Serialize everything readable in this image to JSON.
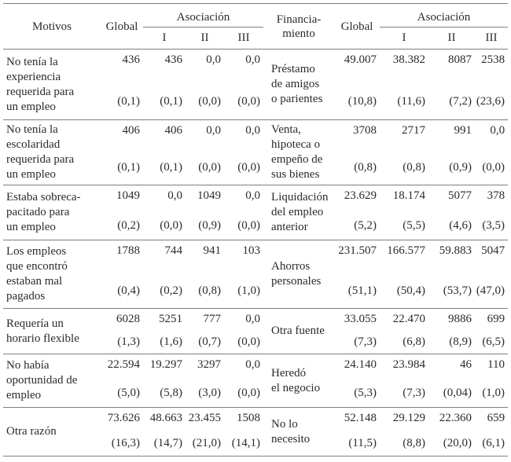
{
  "page": {
    "background": "#ffffff",
    "text_color": "#2b2b2b",
    "rule_color": "#7d7d7d"
  },
  "left_table": {
    "header": {
      "col1": "Motivos",
      "global": "Global",
      "group": "Asociación",
      "sub": [
        "I",
        "II",
        "III"
      ]
    },
    "rows": [
      {
        "label": "No tenía la\nexperiencia\nrequerida para\nun empleo",
        "counts": [
          "436",
          "436",
          "0,0",
          "0,0"
        ],
        "pcts": [
          "(0,1)",
          "(0,1)",
          "(0,0)",
          "(0,0)"
        ]
      },
      {
        "label": "No tenía la\nescolaridad\nrequerida para\nun empleo",
        "counts": [
          "406",
          "406",
          "0,0",
          "0,0"
        ],
        "pcts": [
          "(0,1)",
          "(0,1)",
          "(0,0)",
          "(0,0)"
        ]
      },
      {
        "label": "Estaba sobreca-\npacitado para\nun empleo",
        "counts": [
          "1049",
          "0,0",
          "1049",
          "0,0"
        ],
        "pcts": [
          "(0,2)",
          "(0,0)",
          "(0,9)",
          "(0,0)"
        ]
      },
      {
        "label": "Los empleos\nque encontró\nestaban mal\npagados",
        "counts": [
          "1788",
          "744",
          "941",
          "103"
        ],
        "pcts": [
          "(0,4)",
          "(0,2)",
          "(0,8)",
          "(1,0)"
        ]
      },
      {
        "label": "Requería un\nhorario flexible",
        "counts": [
          "6028",
          "5251",
          "777",
          "0,0"
        ],
        "pcts": [
          "(1,3)",
          "(1,6)",
          "(0,7)",
          "(0,0)"
        ]
      },
      {
        "label": "No había\noportunidad de\nempleo",
        "counts": [
          "22.594",
          "19.297",
          "3297",
          "0,0"
        ],
        "pcts": [
          "(5,0)",
          "(5,8)",
          "(3,0)",
          "(0,0)"
        ]
      },
      {
        "label": "Otra razón",
        "counts": [
          "73.626",
          "48.663",
          "23.455",
          "1508"
        ],
        "pcts": [
          "(16,3)",
          "(14,7)",
          "(21,0)",
          "(14,1)"
        ]
      }
    ]
  },
  "right_table": {
    "header": {
      "col1": "Financia-\nmiento",
      "global": "Global",
      "group": "Asociación",
      "sub": [
        "I",
        "II",
        "III"
      ]
    },
    "rows": [
      {
        "label": "Préstamo\nde amigos\no parientes",
        "counts": [
          "49.007",
          "38.382",
          "8087",
          "2538"
        ],
        "pcts": [
          "(10,8)",
          "(11,6)",
          "(7,2)",
          "(23,6)"
        ]
      },
      {
        "label": "Venta,\nhipoteca o\nempeño de\nsus bienes",
        "counts": [
          "3708",
          "2717",
          "991",
          "0,0"
        ],
        "pcts": [
          "(0,8)",
          "(0,8)",
          "(0,9)",
          "(0,0)"
        ]
      },
      {
        "label": "Liquidación\ndel empleo\nanterior",
        "counts": [
          "23.629",
          "18.174",
          "5077",
          "378"
        ],
        "pcts": [
          "(5,2)",
          "(5,5)",
          "(4,6)",
          "(3,5)"
        ]
      },
      {
        "label": "Ahorros\npersonales",
        "counts": [
          "231.507",
          "166.577",
          "59.883",
          "5047"
        ],
        "pcts": [
          "(51,1)",
          "(50,4)",
          "(53,7)",
          "(47,0)"
        ]
      },
      {
        "label": "Otra fuente",
        "counts": [
          "33.055",
          "22.470",
          "9886",
          "699"
        ],
        "pcts": [
          "(7,3)",
          "(6,8)",
          "(8,9)",
          "(6,5)"
        ]
      },
      {
        "label": "Heredó\nel negocio",
        "counts": [
          "24.140",
          "23.984",
          "46",
          "110"
        ],
        "pcts": [
          "(5,3)",
          "(7,3)",
          "(0,04)",
          "(1,0)"
        ]
      },
      {
        "label": "No lo\nnecesito",
        "counts": [
          "52.148",
          "29.129",
          "22.360",
          "659"
        ],
        "pcts": [
          "(11,5)",
          "(8,8)",
          "(20,0)",
          "(6,1)"
        ]
      }
    ]
  }
}
